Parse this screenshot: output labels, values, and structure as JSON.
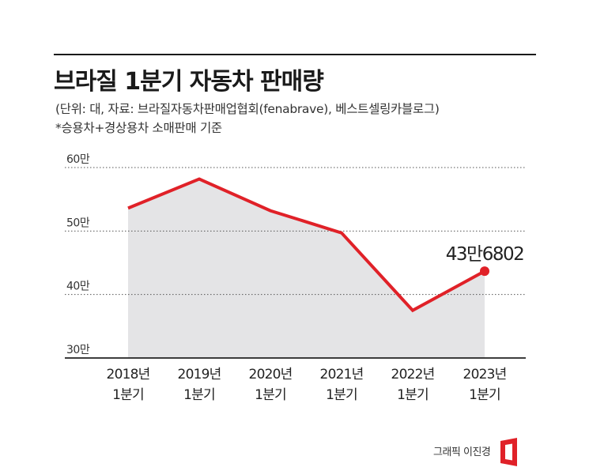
{
  "header": {
    "title": "브라질 1분기 자동차 판매량",
    "subtitle": "(단위: 대, 자료: 브라질자동차판매업협회(fenabrave), 베스트셀링카블로그)",
    "note": "*승용차+경상용차 소매판매 기준"
  },
  "chart_data": {
    "type": "area",
    "categories": [
      [
        "2018년",
        "1분기"
      ],
      [
        "2019년",
        "1분기"
      ],
      [
        "2020년",
        "1분기"
      ],
      [
        "2021년",
        "1분기"
      ],
      [
        "2022년",
        "1분기"
      ],
      [
        "2023년",
        "1분기"
      ]
    ],
    "values": [
      536000,
      582000,
      532000,
      497000,
      375000,
      436802
    ],
    "ylim": [
      300000,
      600000
    ],
    "yticks": [
      {
        "value": 600000,
        "label": "60만"
      },
      {
        "value": 500000,
        "label": "50만"
      },
      {
        "value": 400000,
        "label": "40만"
      },
      {
        "value": 300000,
        "label": "30만"
      }
    ],
    "annotation": {
      "index": 5,
      "text": "43만6802"
    },
    "grid": "dotted",
    "colors": {
      "line": "#e02128",
      "fill": "#e4e4e6",
      "grid": "#555555",
      "axis": "#222222"
    }
  },
  "footer": {
    "credit": "그래픽 이진경",
    "logo_color": "#e02128"
  }
}
